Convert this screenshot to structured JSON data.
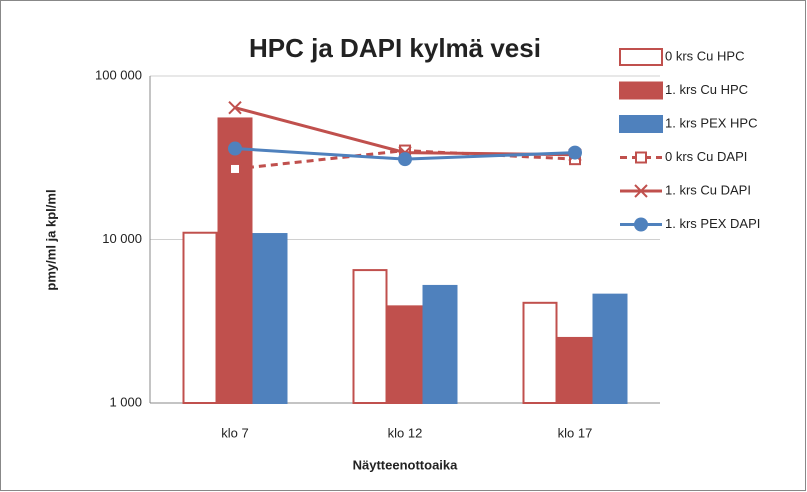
{
  "chart_data": {
    "type": "bar",
    "title": "HPC ja DAPI kylmä vesi",
    "x_label": "Näytteenottoaika",
    "y_label": "pmy/ml ja kpl/ml",
    "categories": [
      "klo 7",
      "klo 12",
      "klo 17"
    ],
    "log_scale": true,
    "grid": true,
    "legend": "right",
    "ylim": [
      1000,
      100000
    ],
    "yticks": [
      {
        "value": 1000,
        "label": "1 000"
      },
      {
        "value": 10000,
        "label": "10 000"
      },
      {
        "value": 100000,
        "label": "100 000"
      }
    ],
    "series": [
      {
        "name": "0 krs Cu HPC",
        "type": "bar",
        "color": "#c0504d",
        "fill": "#ffffff",
        "values": [
          11000,
          6500,
          4100
        ]
      },
      {
        "name": "1. krs Cu HPC",
        "type": "bar",
        "color": "#c0504d",
        "fill": "#c0504d",
        "values": [
          55000,
          3900,
          2500
        ]
      },
      {
        "name": "1. krs PEX HPC",
        "type": "bar",
        "color": "#4f81bd",
        "fill": "#4f81bd",
        "values": [
          10800,
          5200,
          4600
        ]
      },
      {
        "name": "0 krs Cu DAPI",
        "type": "line",
        "color": "#c0504d",
        "dash": true,
        "marker": "square",
        "values": [
          27000,
          35000,
          31000
        ]
      },
      {
        "name": "1. krs Cu DAPI",
        "type": "line",
        "color": "#c0504d",
        "dash": false,
        "marker": "x",
        "values": [
          64000,
          34000,
          33000
        ]
      },
      {
        "name": "1. krs PEX DAPI",
        "type": "line",
        "color": "#4f81bd",
        "dash": false,
        "marker": "circle",
        "values": [
          36000,
          31000,
          34000
        ]
      }
    ]
  }
}
